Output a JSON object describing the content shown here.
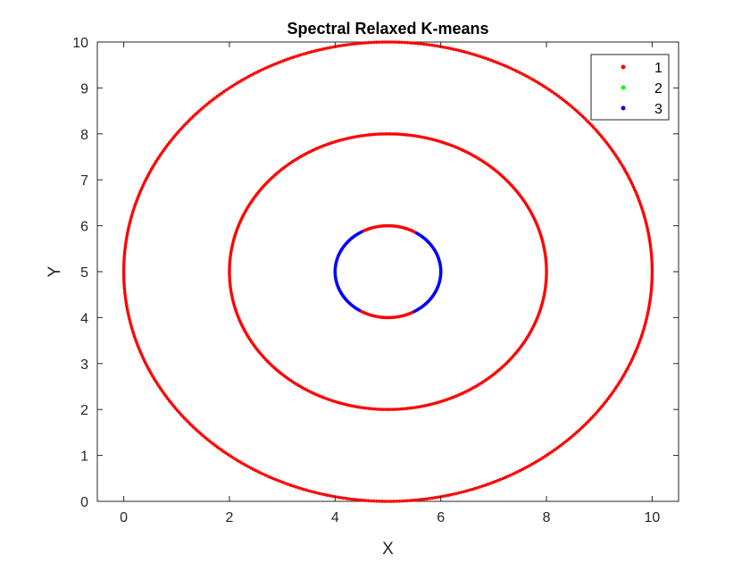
{
  "chart_data": {
    "type": "scatter",
    "title": "Spectral Relaxed K-means",
    "xlabel": "X",
    "ylabel": "Y",
    "xlim": [
      -0.5,
      10.5
    ],
    "ylim": [
      0,
      10
    ],
    "xticks": [
      0,
      2,
      4,
      6,
      8,
      10
    ],
    "yticks": [
      0,
      1,
      2,
      3,
      4,
      5,
      6,
      7,
      8,
      9,
      10
    ],
    "grid": false,
    "legend_position": "top-right",
    "series": [
      {
        "name": "1",
        "color": "#ff0000",
        "marker": "dot"
      },
      {
        "name": "2",
        "color": "#00ff00",
        "marker": "dot"
      },
      {
        "name": "3",
        "color": "#0000ff",
        "marker": "dot"
      }
    ],
    "rings": [
      {
        "center": [
          5,
          5
        ],
        "radius": 5,
        "segments": [
          {
            "series": "1",
            "from_deg": 0,
            "to_deg": 360
          }
        ]
      },
      {
        "center": [
          5,
          5
        ],
        "radius": 3,
        "segments": [
          {
            "series": "1",
            "from_deg": 0,
            "to_deg": 360
          }
        ]
      },
      {
        "center": [
          5,
          5
        ],
        "radius": 1,
        "segments": [
          {
            "series": "3",
            "from_deg": -60,
            "to_deg": 60
          },
          {
            "series": "1",
            "from_deg": 60,
            "to_deg": 120
          },
          {
            "series": "3",
            "from_deg": 120,
            "to_deg": 240
          },
          {
            "series": "1",
            "from_deg": 240,
            "to_deg": 300
          }
        ]
      }
    ]
  }
}
